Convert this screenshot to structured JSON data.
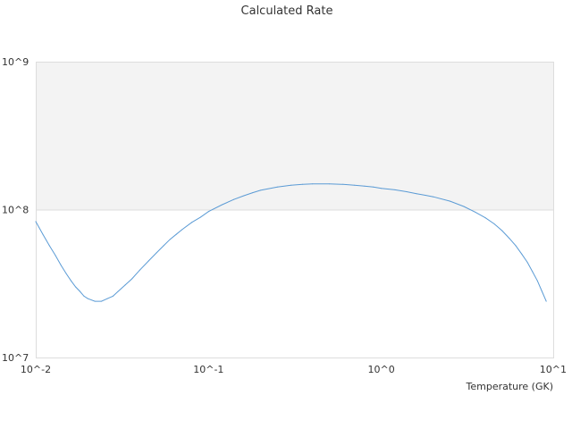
{
  "chart_data": {
    "type": "line",
    "title": "Calculated Rate",
    "xlabel": "Temperature (GK)",
    "ylabel": "",
    "x_scale": "log",
    "y_scale": "log",
    "xlim": [
      0.01,
      10
    ],
    "ylim": [
      10000000,
      1000000000
    ],
    "x_ticks": [
      0.01,
      0.1,
      1,
      10
    ],
    "x_tick_labels": [
      "10^-2",
      "10^-1",
      "10^0",
      "10^1"
    ],
    "y_ticks": [
      10000000,
      100000000,
      1000000000
    ],
    "y_tick_labels": [
      "10^7",
      "10^8",
      "10^9"
    ],
    "grid": true,
    "shaded_band": [
      100000000,
      1000000000
    ],
    "band_color": "#f3f3f3",
    "grid_color": "#dddddd",
    "series": [
      {
        "color": "#5b9bd5",
        "x": [
          0.01,
          0.011,
          0.012,
          0.013,
          0.014,
          0.015,
          0.016,
          0.017,
          0.018,
          0.019,
          0.02,
          0.022,
          0.024,
          0.026,
          0.028,
          0.03,
          0.033,
          0.036,
          0.04,
          0.045,
          0.05,
          0.055,
          0.06,
          0.065,
          0.07,
          0.08,
          0.09,
          0.1,
          0.12,
          0.14,
          0.16,
          0.18,
          0.2,
          0.25,
          0.3,
          0.35,
          0.4,
          0.5,
          0.6,
          0.7,
          0.8,
          0.9,
          1.0,
          1.2,
          1.4,
          1.6,
          1.8,
          2.0,
          2.5,
          3.0,
          3.5,
          4.0,
          4.5,
          5.0,
          5.5,
          6.0,
          6.5,
          7.0,
          7.5,
          8.0,
          8.5,
          9.0
        ],
        "y": [
          83000000,
          68000000,
          57000000,
          49000000,
          42000000,
          37000000,
          33000000,
          30000000,
          28000000,
          26000000,
          25000000,
          24000000,
          24000000,
          25000000,
          26000000,
          28000000,
          31000000,
          34000000,
          39000000,
          45000000,
          51000000,
          57000000,
          63000000,
          68000000,
          73000000,
          82000000,
          89000000,
          97000000,
          108000000,
          117000000,
          124000000,
          130000000,
          135000000,
          142000000,
          146000000,
          148000000,
          149000000,
          149000000,
          148000000,
          146000000,
          144000000,
          142000000,
          139000000,
          136000000,
          132000000,
          128000000,
          125000000,
          122000000,
          114000000,
          105000000,
          96000000,
          88000000,
          80000000,
          72000000,
          64000000,
          57000000,
          50000000,
          44000000,
          38000000,
          33000000,
          28000000,
          24000000
        ]
      }
    ]
  }
}
